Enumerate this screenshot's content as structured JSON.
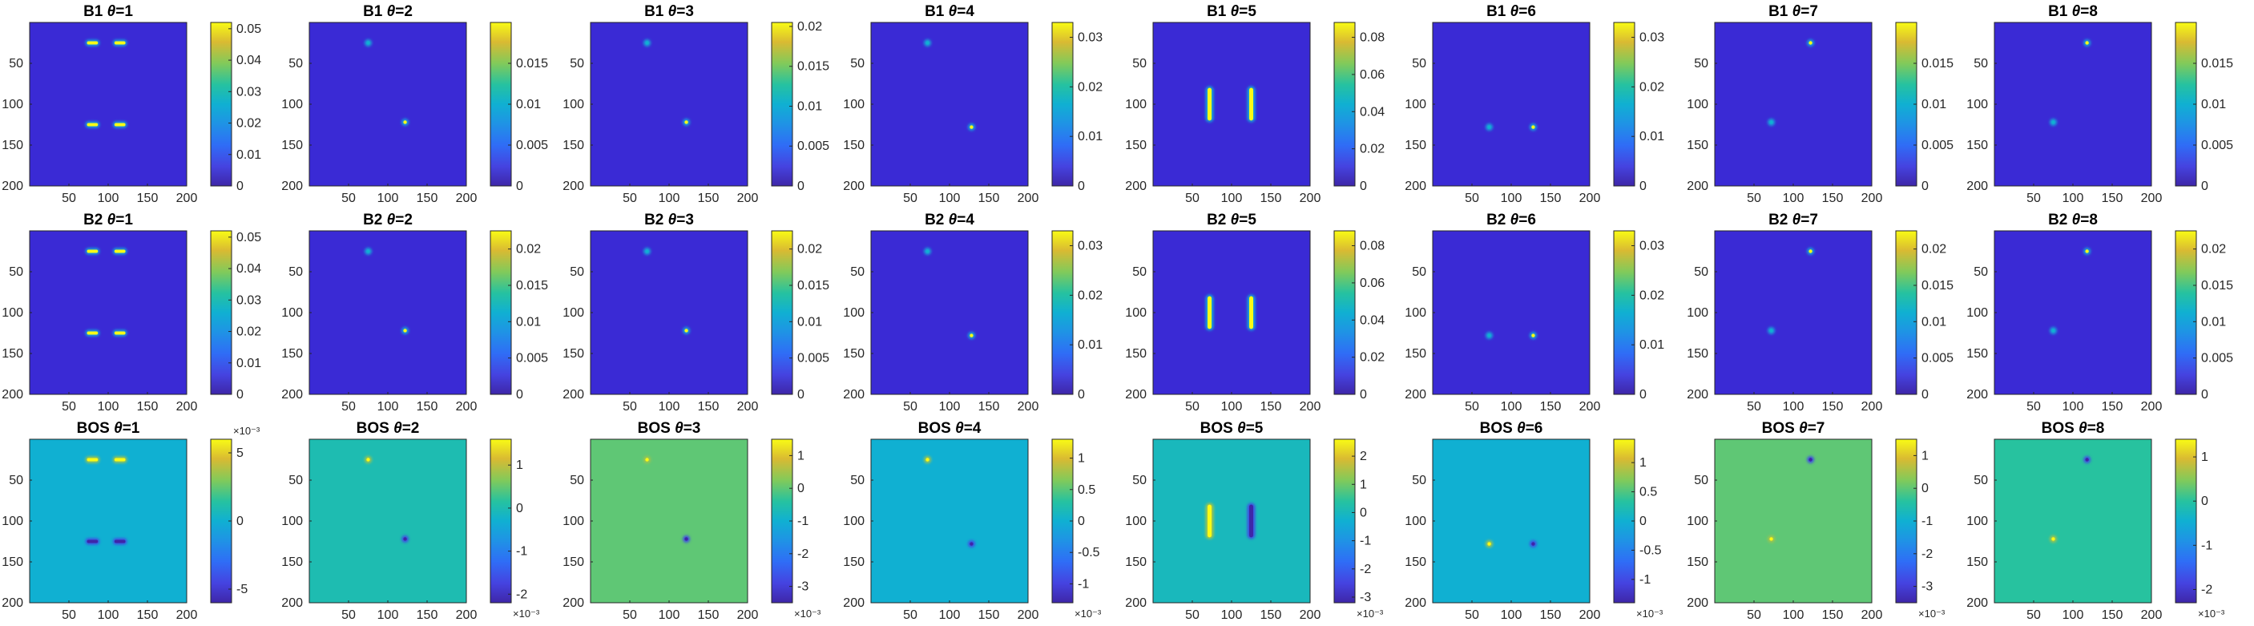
{
  "chart_data": {
    "type": "heatmap",
    "layout": {
      "rows": 3,
      "cols": 8
    },
    "colormap": "parula",
    "image_background": "#3a2ad5",
    "x_ticks": [
      "50",
      "100",
      "150",
      "200"
    ],
    "y_ticks": [
      "50",
      "100",
      "150",
      "200"
    ],
    "rows": [
      {
        "label": "B1",
        "panels": [
          {
            "theta": "=1",
            "cbar_ticks": [
              "0",
              "0.01",
              "0.02",
              "0.03",
              "0.04",
              "0.05"
            ],
            "clim": [
              0,
              0.052
            ]
          },
          {
            "theta": "=2",
            "cbar_ticks": [
              "0",
              "0.005",
              "0.01",
              "0.015"
            ],
            "clim": [
              0,
              0.02
            ]
          },
          {
            "theta": "=3",
            "cbar_ticks": [
              "0",
              "0.005",
              "0.01",
              "0.015",
              "0.02"
            ],
            "clim": [
              0,
              0.0205
            ]
          },
          {
            "theta": "=4",
            "cbar_ticks": [
              "0",
              "0.01",
              "0.02",
              "0.03"
            ],
            "clim": [
              0,
              0.033
            ]
          },
          {
            "theta": "=5",
            "cbar_ticks": [
              "0",
              "0.02",
              "0.04",
              "0.06",
              "0.08"
            ],
            "clim": [
              0,
              0.088
            ]
          },
          {
            "theta": "=6",
            "cbar_ticks": [
              "0",
              "0.01",
              "0.02",
              "0.03"
            ],
            "clim": [
              0,
              0.033
            ]
          },
          {
            "theta": "=7",
            "cbar_ticks": [
              "0",
              "0.005",
              "0.01",
              "0.015"
            ],
            "clim": [
              0,
              0.02
            ]
          },
          {
            "theta": "=8",
            "cbar_ticks": [
              "0",
              "0.005",
              "0.01",
              "0.015"
            ],
            "clim": [
              0,
              0.02
            ]
          }
        ]
      },
      {
        "label": "B2",
        "panels": [
          {
            "theta": "=1",
            "cbar_ticks": [
              "0",
              "0.01",
              "0.02",
              "0.03",
              "0.04",
              "0.05"
            ],
            "clim": [
              0,
              0.052
            ]
          },
          {
            "theta": "=2",
            "cbar_ticks": [
              "0",
              "0.005",
              "0.01",
              "0.015",
              "0.02"
            ],
            "clim": [
              0,
              0.0225
            ]
          },
          {
            "theta": "=3",
            "cbar_ticks": [
              "0",
              "0.005",
              "0.01",
              "0.015",
              "0.02"
            ],
            "clim": [
              0,
              0.0225
            ]
          },
          {
            "theta": "=4",
            "cbar_ticks": [
              "0",
              "0.01",
              "0.02",
              "0.03"
            ],
            "clim": [
              0,
              0.033
            ]
          },
          {
            "theta": "=5",
            "cbar_ticks": [
              "0",
              "0.02",
              "0.04",
              "0.06",
              "0.08"
            ],
            "clim": [
              0,
              0.088
            ]
          },
          {
            "theta": "=6",
            "cbar_ticks": [
              "0",
              "0.01",
              "0.02",
              "0.03"
            ],
            "clim": [
              0,
              0.033
            ]
          },
          {
            "theta": "=7",
            "cbar_ticks": [
              "0",
              "0.005",
              "0.01",
              "0.015",
              "0.02"
            ],
            "clim": [
              0,
              0.0225
            ]
          },
          {
            "theta": "=8",
            "cbar_ticks": [
              "0",
              "0.005",
              "0.01",
              "0.015",
              "0.02"
            ],
            "clim": [
              0,
              0.0225
            ]
          }
        ]
      },
      {
        "label": "BOS",
        "panels": [
          {
            "theta": "=1",
            "cbar_ticks": [
              "-5",
              "0",
              "5"
            ],
            "clim": [
              -6,
              6
            ],
            "exponent": "×10⁻³",
            "exponent_pos": "top",
            "background_value": 0
          },
          {
            "theta": "=2",
            "cbar_ticks": [
              "-2",
              "-1",
              "0",
              "1"
            ],
            "clim": [
              -2.2,
              1.6
            ],
            "exponent": "×10⁻³",
            "exponent_pos": "bottom",
            "background_value": 0
          },
          {
            "theta": "=3",
            "cbar_ticks": [
              "-3",
              "-2",
              "-1",
              "0",
              "1"
            ],
            "clim": [
              -3.5,
              1.5
            ],
            "exponent": "×10⁻³",
            "exponent_pos": "bottom",
            "background_value": 0
          },
          {
            "theta": "=4",
            "cbar_ticks": [
              "-1",
              "-0.5",
              "0",
              "0.5",
              "1"
            ],
            "clim": [
              -1.3,
              1.3
            ],
            "exponent": "×10⁻³",
            "exponent_pos": "bottom",
            "background_value": 0
          },
          {
            "theta": "=5",
            "cbar_ticks": [
              "-3",
              "-2",
              "-1",
              "0",
              "1",
              "2"
            ],
            "clim": [
              -3.2,
              2.6
            ],
            "exponent": "×10⁻³",
            "exponent_pos": "bottom",
            "background_value": 0
          },
          {
            "theta": "=6",
            "cbar_ticks": [
              "-1",
              "-0.5",
              "0",
              "0.5",
              "1"
            ],
            "clim": [
              -1.4,
              1.4
            ],
            "exponent": "×10⁻³",
            "exponent_pos": "bottom",
            "background_value": 0
          },
          {
            "theta": "=7",
            "cbar_ticks": [
              "-3",
              "-2",
              "-1",
              "0",
              "1"
            ],
            "clim": [
              -3.5,
              1.5
            ],
            "exponent": "×10⁻³",
            "exponent_pos": "bottom",
            "background_value": 0
          },
          {
            "theta": "=8",
            "cbar_ticks": [
              "-2",
              "-1",
              "0",
              "1"
            ],
            "clim": [
              -2.3,
              1.4
            ],
            "exponent": "×10⁻³",
            "exponent_pos": "bottom",
            "background_value": 0
          }
        ]
      }
    ],
    "features": {
      "1": {
        "kind": "bars_h",
        "spots": [
          [
            80,
            25
          ],
          [
            115,
            25
          ],
          [
            80,
            125
          ],
          [
            115,
            125
          ]
        ]
      },
      "2": {
        "kind": "dots",
        "spots": [
          [
            75,
            25
          ],
          [
            122,
            122
          ]
        ]
      },
      "3": {
        "kind": "dots",
        "spots": [
          [
            72,
            25
          ],
          [
            122,
            122
          ]
        ]
      },
      "4": {
        "kind": "dots",
        "spots": [
          [
            72,
            25
          ],
          [
            128,
            128
          ]
        ]
      },
      "5": {
        "kind": "bars_v",
        "spots": [
          [
            72,
            100
          ],
          [
            125,
            100
          ]
        ]
      },
      "6": {
        "kind": "dots",
        "spots": [
          [
            72,
            128
          ],
          [
            128,
            128
          ]
        ]
      },
      "7": {
        "kind": "dots",
        "spots": [
          [
            72,
            122
          ],
          [
            122,
            25
          ]
        ]
      },
      "8": {
        "kind": "dots",
        "spots": [
          [
            75,
            122
          ],
          [
            118,
            25
          ]
        ]
      }
    }
  }
}
